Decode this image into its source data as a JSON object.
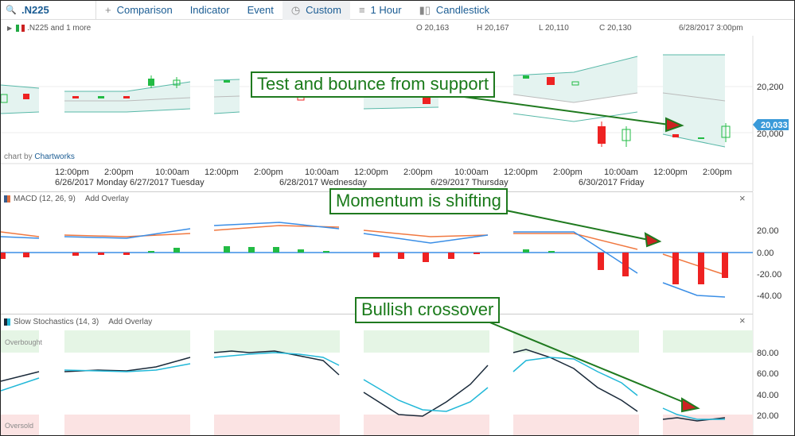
{
  "toolbar": {
    "symbol": ".N225",
    "comparison": "Comparison",
    "indicator": "Indicator",
    "event": "Event",
    "custom": "Custom",
    "interval": "1 Hour",
    "chart_style": "Candlestick",
    "icons": [
      "search-icon",
      "plus-icon",
      "clock-icon",
      "interval-icon",
      "candlestick-icon"
    ]
  },
  "chart_header": {
    "series_label": ".N225 and 1 more",
    "open": "O 20,163",
    "high": "H 20,167",
    "low": "L 20,110",
    "close": "C 20,130",
    "datetime": "6/28/2017 3:00pm"
  },
  "price_panel": {
    "y_ticks": [
      "20,200",
      "20,000"
    ],
    "current_price": "20,033",
    "attribution_prefix": "chart by ",
    "attribution_link": "Chartworks",
    "time_labels": [
      "12:00pm",
      "2:00pm",
      "10:00am",
      "12:00pm",
      "2:00pm",
      "10:00am",
      "12:00pm",
      "2:00pm",
      "10:00am",
      "12:00pm",
      "2:00pm",
      "10:00am",
      "12:00pm",
      "2:00pm"
    ],
    "date_labels": [
      "6/26/2017 Monday",
      "6/27/2017 Tuesday",
      "6/28/2017 Wednesday",
      "6/29/2017 Thursday",
      "6/30/2017 Friday"
    ],
    "colors": {
      "up": "#22bb44",
      "down": "#ee2222",
      "band_fill": "#e4f3f0",
      "band_line": "#58b8a8",
      "mid_line": "#bbbbbb",
      "price_tag": "#3a9ad9"
    }
  },
  "macd_panel": {
    "title": "MACD (12, 26, 9)",
    "add_overlay": "Add Overlay",
    "y_ticks": [
      "20.00",
      "0.00",
      "-20.00",
      "-40.00"
    ],
    "colors": {
      "macd": "#3a8ee6",
      "signal": "#f07840",
      "hist_up": "#22bb44",
      "hist_down": "#ee2222",
      "zero": "#3a8ee6"
    }
  },
  "stoch_panel": {
    "title": "Slow Stochastics (14, 3)",
    "add_overlay": "Add Overlay",
    "overbought_label": "Overbought",
    "oversold_label": "Oversold",
    "y_ticks": [
      "80.00",
      "60.00",
      "40.00",
      "20.00"
    ],
    "colors": {
      "k": "#1a2a3a",
      "d": "#22b8d8",
      "overbought": "#e5f5e5",
      "oversold": "#fbe3e3"
    }
  },
  "annotations": {
    "support": "Test and bounce from support",
    "momentum": "Momentum is shifting",
    "crossover": "Bullish crossover",
    "color": "#1f7a1f"
  }
}
